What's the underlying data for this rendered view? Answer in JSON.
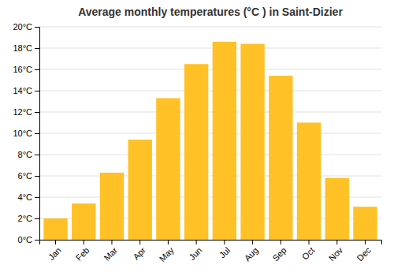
{
  "chart_data": {
    "type": "bar",
    "title": "Average monthly temperatures (°C ) in Saint-Dizier",
    "categories": [
      "Jan",
      "Feb",
      "Mar",
      "Apr",
      "May",
      "Jun",
      "Jul",
      "Aug",
      "Sep",
      "Oct",
      "Nov",
      "Dec"
    ],
    "values": [
      2.0,
      3.4,
      6.3,
      9.4,
      13.3,
      16.5,
      18.6,
      18.4,
      15.4,
      11.0,
      5.8,
      3.1
    ],
    "color": "#FFC125",
    "ylim": [
      0,
      20
    ],
    "yticks": [
      {
        "value": 0,
        "label": "0°C"
      },
      {
        "value": 2,
        "label": "2°C"
      },
      {
        "value": 4,
        "label": "4°C"
      },
      {
        "value": 6,
        "label": "6°C"
      },
      {
        "value": 8,
        "label": "8°C"
      },
      {
        "value": 10,
        "label": "10°C"
      },
      {
        "value": 12,
        "label": "12°C"
      },
      {
        "value": 14,
        "label": "14°C"
      },
      {
        "value": 16,
        "label": "16°C"
      },
      {
        "value": 18,
        "label": "18°C"
      },
      {
        "value": 20,
        "label": "20°C"
      }
    ],
    "grid": true
  }
}
